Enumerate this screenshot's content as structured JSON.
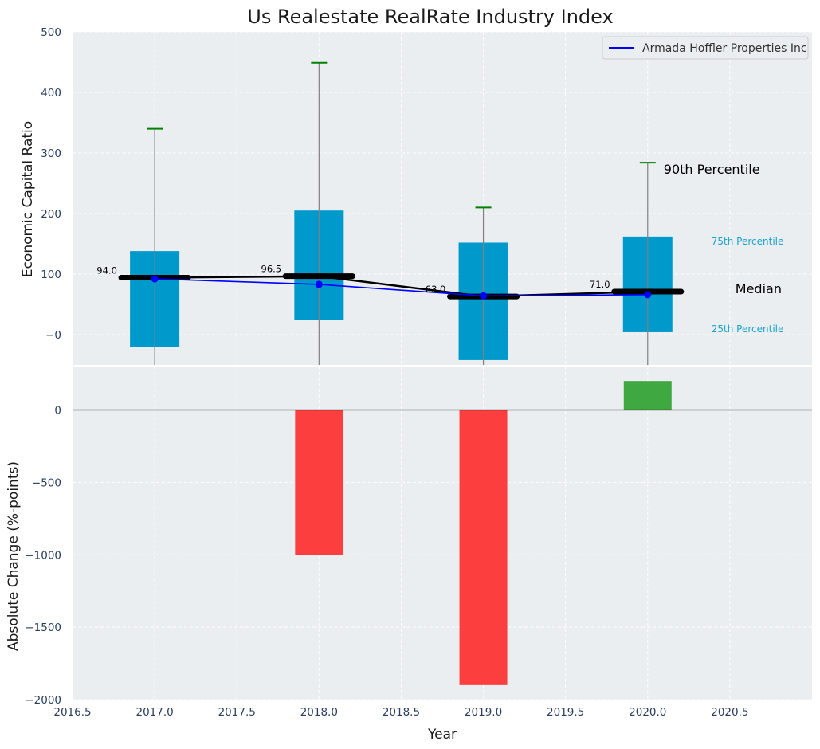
{
  "colors": {
    "panel_bg": "#eaeef0",
    "box": "#0099cc",
    "whisker": "#808080",
    "cap": "#008000",
    "median_line": "#000000",
    "company_line": "#0000ff",
    "positive_bar": "#2ca02c",
    "negative_bar": "#ff2a2a",
    "percentile_text": "#1aa3cc"
  },
  "chart_data": [
    {
      "type": "box",
      "title": "Us Realestate RealRate Industry Index",
      "xlabel": "",
      "ylabel": "Economic Capital Ratio",
      "xlim": [
        2016.5,
        2021.0
      ],
      "ylim": [
        -50,
        500
      ],
      "yticks": [
        "−0",
        "100",
        "200",
        "300",
        "400",
        "500"
      ],
      "grid": true,
      "legend": {
        "position": "top-right",
        "entries": [
          "Armada Hoffler Properties Inc"
        ]
      },
      "categories": [
        2017,
        2018,
        2019,
        2020
      ],
      "boxes": [
        {
          "x": 2017,
          "p25": -20,
          "median": 94.0,
          "p75": 138,
          "p90": 340,
          "whisker_low": -50
        },
        {
          "x": 2018,
          "p25": 25,
          "median": 96.5,
          "p75": 205,
          "p90": 449,
          "whisker_low": -50
        },
        {
          "x": 2019,
          "p25": -42,
          "median": 63.0,
          "p75": 152,
          "p90": 210,
          "whisker_low": -50
        },
        {
          "x": 2020,
          "p25": 4,
          "median": 71.0,
          "p75": 162,
          "p90": 284,
          "whisker_low": -50
        }
      ],
      "median_labels": [
        "94.0",
        "96.5",
        "63.0",
        "71.0"
      ],
      "series": [
        {
          "name": "Armada Hoffler Properties Inc",
          "x": [
            2017,
            2018,
            2019,
            2020
          ],
          "values": [
            92,
            83,
            64,
            66
          ]
        }
      ],
      "annotations": {
        "p90": "90th Percentile",
        "p75": "75th Percentile",
        "median": "Median",
        "p25": "25th Percentile"
      }
    },
    {
      "type": "bar",
      "xlabel": "Year",
      "ylabel": "Absolute Change (%-points)",
      "xlim": [
        2016.5,
        2021.0
      ],
      "ylim": [
        -2000,
        300
      ],
      "xticks": [
        "2016.5",
        "2017.0",
        "2017.5",
        "2018.0",
        "2018.5",
        "2019.0",
        "2019.5",
        "2020.0",
        "2020.5"
      ],
      "yticks": [
        "−2000",
        "−1500",
        "−1000",
        "−500",
        "0"
      ],
      "grid": true,
      "x": [
        2018,
        2019,
        2020
      ],
      "values": [
        -1000,
        -1900,
        200
      ]
    }
  ]
}
